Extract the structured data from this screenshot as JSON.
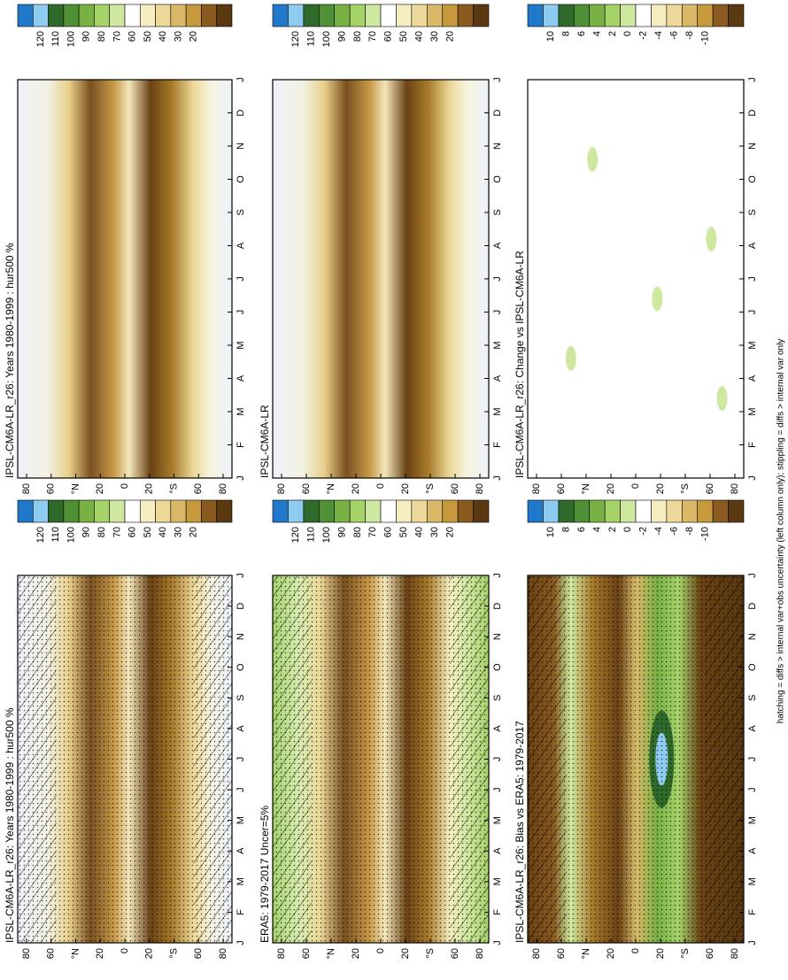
{
  "panels": [
    {
      "title": "IPSL-CM6A-LR_r26: Years 1980-1999 : hur500 %",
      "colorbar": [
        "120",
        "110",
        "100",
        "90",
        "80",
        "70",
        "60",
        "50",
        "40",
        "30",
        "20"
      ]
    },
    {
      "title": "ERA5: 1979-2017 Uncer=5%",
      "colorbar": [
        "120",
        "110",
        "100",
        "90",
        "80",
        "70",
        "60",
        "50",
        "40",
        "30",
        "20"
      ]
    },
    {
      "title": "IPSL-CM6A-LR_r26: Bias vs ERA5: 1979-2017",
      "colorbar": [
        "10",
        "8",
        "6",
        "4",
        "2",
        "0",
        "-2",
        "-4",
        "-6",
        "-8",
        "-10"
      ]
    },
    {
      "title": "IPSL-CM6A-LR_r26: Years 1980-1999 : hur500 %",
      "colorbar": [
        "120",
        "110",
        "100",
        "90",
        "80",
        "70",
        "60",
        "50",
        "40",
        "30",
        "20"
      ]
    },
    {
      "title": "IPSL-CM6A-LR",
      "colorbar": [
        "120",
        "110",
        "100",
        "90",
        "80",
        "70",
        "60",
        "50",
        "40",
        "30",
        "20"
      ]
    },
    {
      "title": "IPSL-CM6A-LR_r26: Change vs IPSL-CM6A-LR",
      "colorbar": [
        "10",
        "8",
        "6",
        "4",
        "2",
        "0",
        "-2",
        "-4",
        "-6",
        "-8",
        "-10"
      ]
    }
  ],
  "lat_labels": [
    "80",
    "60",
    "°N",
    "20",
    "0",
    "20",
    "°S",
    "60",
    "80"
  ],
  "month_labels": [
    "J",
    "F",
    "M",
    "A",
    "M",
    "J",
    "J",
    "A",
    "S",
    "O",
    "N",
    "D",
    "J"
  ],
  "footer": "hatching = diffs > internal var+obs uncertainty (left column only); stippling = diffs > internal var only"
}
